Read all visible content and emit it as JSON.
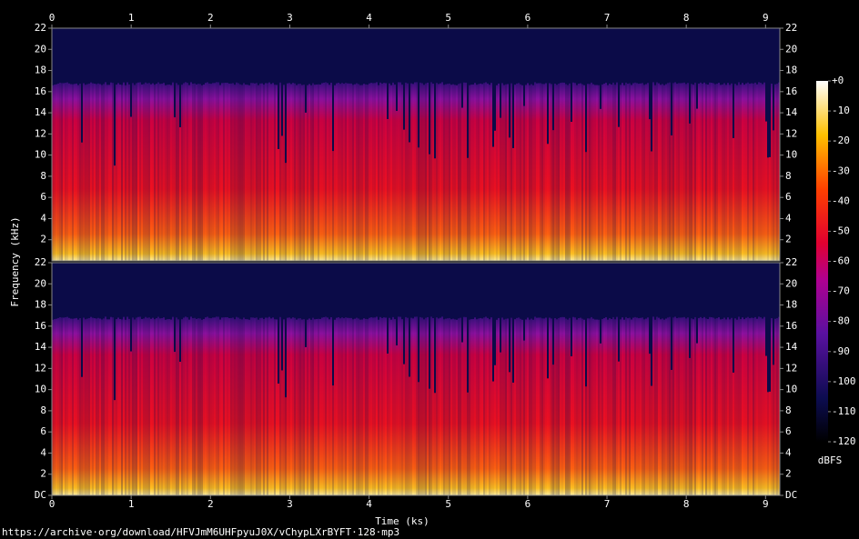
{
  "chart_data": {
    "type": "spectrogram",
    "xlabel": "Time (ks)",
    "ylabel": "Frequency (kHz)",
    "xlim": [
      0,
      9.18
    ],
    "xticks": [
      0,
      1,
      2,
      3,
      4,
      5,
      6,
      7,
      8,
      9
    ],
    "ylim": [
      0,
      22
    ],
    "panels": [
      {
        "yticks": [
          2,
          4,
          6,
          8,
          10,
          12,
          14,
          16,
          18,
          20,
          22
        ]
      },
      {
        "yticks": [
          {
            "value": 0,
            "label": "DC"
          },
          2,
          4,
          6,
          8,
          10,
          12,
          14,
          16,
          18,
          20,
          22
        ]
      }
    ],
    "colorbar": {
      "label": "dBFS",
      "lim": [
        -120,
        0
      ],
      "ticks": [
        {
          "value": 0,
          "label": "+0"
        },
        -10,
        -20,
        -30,
        -40,
        -50,
        -60,
        -70,
        -80,
        -90,
        -100,
        -110,
        -120
      ]
    },
    "footer": "https://archive·org/download/HFVJmM6UHFpyuJ0X/vChypLXrBYFT·128·mp3"
  }
}
